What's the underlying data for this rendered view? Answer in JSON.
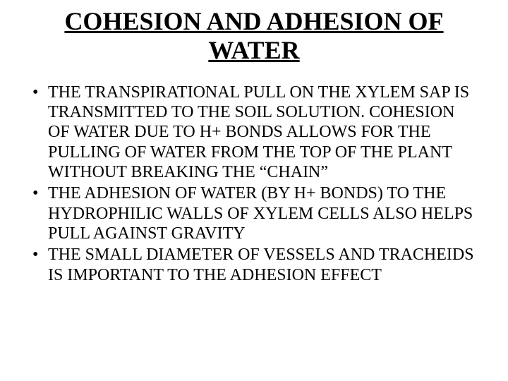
{
  "title_fontsize": 36,
  "body_fontsize": 24,
  "text_color": "#000000",
  "background_color": "#ffffff",
  "font_family": "Times New Roman",
  "title": "COHESION AND ADHESION OF WATER",
  "bullets": [
    "THE TRANSPIRATIONAL PULL ON THE XYLEM SAP IS TRANSMITTED TO THE SOIL SOLUTION.  COHESION OF WATER DUE TO H+  BONDS ALLOWS FOR THE PULLING OF WATER FROM THE TOP OF THE PLANT WITHOUT BREAKING THE “CHAIN”",
    "THE ADHESION OF WATER (BY H+  BONDS) TO THE HYDROPHILIC WALLS OF XYLEM CELLS ALSO HELPS PULL AGAINST GRAVITY",
    "THE SMALL DIAMETER OF VESSELS AND TRACHEIDS IS IMPORTANT TO THE ADHESION EFFECT"
  ]
}
